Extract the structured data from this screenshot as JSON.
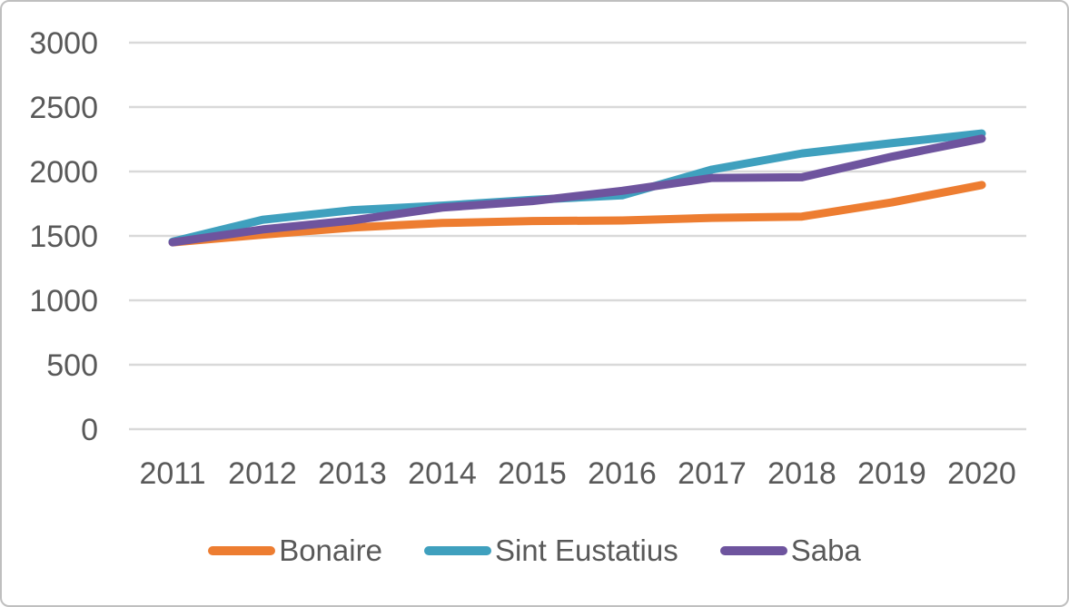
{
  "chart_data": {
    "type": "line",
    "title": "",
    "x": [
      2011,
      2012,
      2013,
      2014,
      2015,
      2016,
      2017,
      2018,
      2019,
      2020
    ],
    "series": [
      {
        "name": "Bonaire",
        "color": "#ED7D31",
        "values": [
          1450,
          1510,
          1565,
          1600,
          1615,
          1620,
          1640,
          1650,
          1760,
          1895
        ]
      },
      {
        "name": "Sint Eustatius",
        "color": "#3FA0BE",
        "values": [
          1455,
          1625,
          1700,
          1735,
          1780,
          1815,
          2015,
          2140,
          2220,
          2295
        ]
      },
      {
        "name": "Saba",
        "color": "#6E549E",
        "values": [
          1450,
          1550,
          1620,
          1720,
          1770,
          1850,
          1950,
          1955,
          2115,
          2255
        ]
      }
    ],
    "ylim": [
      0,
      3000
    ],
    "yticks": [
      0,
      500,
      1000,
      1500,
      2000,
      2500,
      3000
    ],
    "grid": true,
    "legend_position": "bottom",
    "line_width": 9
  },
  "styles": {
    "grid_color": "#D9D9D9",
    "axis_text_color": "#595959",
    "border_color": "#BFBFBF",
    "background": "#FFFFFF"
  }
}
